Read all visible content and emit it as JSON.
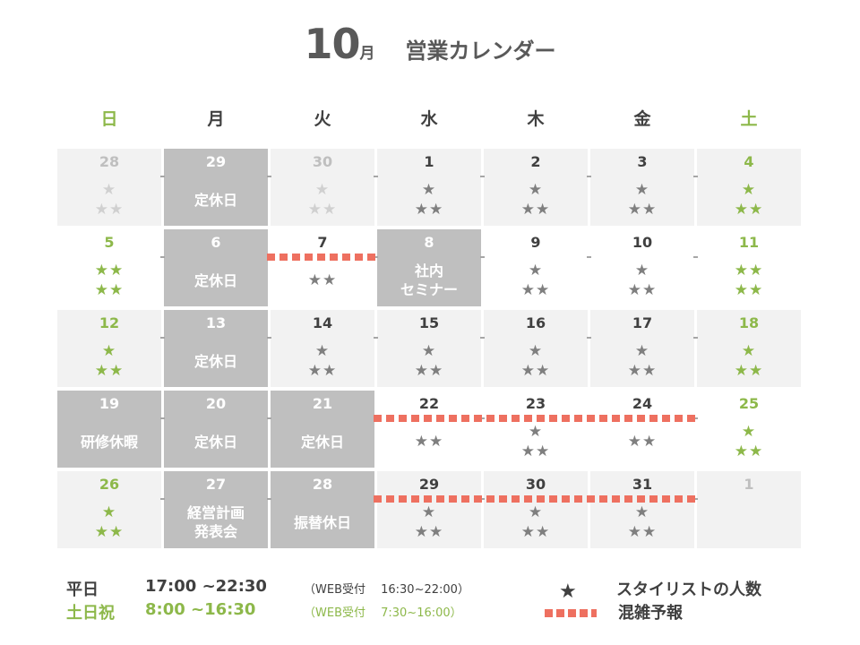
{
  "title": {
    "month": "10",
    "unit": "月",
    "text": "営業カレンダー"
  },
  "weekdays": [
    {
      "label": "日",
      "weekend": true
    },
    {
      "label": "月",
      "weekend": false
    },
    {
      "label": "火",
      "weekend": false
    },
    {
      "label": "水",
      "weekend": false
    },
    {
      "label": "木",
      "weekend": false
    },
    {
      "label": "金",
      "weekend": false
    },
    {
      "label": "土",
      "weekend": true
    }
  ],
  "weeks": [
    [
      {
        "day": "28",
        "style": "light",
        "weekend": false,
        "muted": true,
        "stars": [
          "★",
          "★★"
        ]
      },
      {
        "day": "29",
        "style": "dark",
        "note": "定休日"
      },
      {
        "day": "30",
        "style": "light",
        "weekend": false,
        "muted": true,
        "stars": [
          "★",
          "★★"
        ]
      },
      {
        "day": "1",
        "style": "light",
        "stars": [
          "★",
          "★★"
        ]
      },
      {
        "day": "2",
        "style": "light",
        "stars": [
          "★",
          "★★"
        ]
      },
      {
        "day": "3",
        "style": "light",
        "stars": [
          "★",
          "★★"
        ]
      },
      {
        "day": "4",
        "style": "light",
        "weekend": true,
        "stars": [
          "★",
          "★★"
        ]
      }
    ],
    [
      {
        "day": "5",
        "style": "white",
        "weekend": true,
        "stars": [
          "★★",
          "★★"
        ]
      },
      {
        "day": "6",
        "style": "dark",
        "note": "定休日"
      },
      {
        "day": "7",
        "style": "white",
        "stars": [
          "★★"
        ]
      },
      {
        "day": "8",
        "style": "dark",
        "note": "社内\nセミナー"
      },
      {
        "day": "9",
        "style": "white",
        "stars": [
          "★",
          "★★"
        ]
      },
      {
        "day": "10",
        "style": "white",
        "stars": [
          "★",
          "★★"
        ]
      },
      {
        "day": "11",
        "style": "white",
        "weekend": true,
        "stars": [
          "★★",
          "★★"
        ]
      }
    ],
    [
      {
        "day": "12",
        "style": "light",
        "weekend": true,
        "stars": [
          "★",
          "★★"
        ]
      },
      {
        "day": "13",
        "style": "dark",
        "note": "定休日"
      },
      {
        "day": "14",
        "style": "light",
        "stars": [
          "★",
          "★★"
        ]
      },
      {
        "day": "15",
        "style": "light",
        "stars": [
          "★",
          "★★"
        ]
      },
      {
        "day": "16",
        "style": "light",
        "stars": [
          "★",
          "★★"
        ]
      },
      {
        "day": "17",
        "style": "light",
        "stars": [
          "★",
          "★★"
        ]
      },
      {
        "day": "18",
        "style": "light",
        "weekend": true,
        "stars": [
          "★",
          "★★"
        ]
      }
    ],
    [
      {
        "day": "19",
        "style": "dark",
        "note": "研修休暇"
      },
      {
        "day": "20",
        "style": "dark",
        "note": "定休日"
      },
      {
        "day": "21",
        "style": "dark",
        "note": "定休日"
      },
      {
        "day": "22",
        "style": "white",
        "stars": [
          "★★"
        ]
      },
      {
        "day": "23",
        "style": "white",
        "stars": [
          "★",
          "★★"
        ]
      },
      {
        "day": "24",
        "style": "white",
        "stars": [
          "★★"
        ]
      },
      {
        "day": "25",
        "style": "white",
        "weekend": true,
        "stars": [
          "★",
          "★★"
        ]
      }
    ],
    [
      {
        "day": "26",
        "style": "light",
        "weekend": true,
        "stars": [
          "★",
          "★★"
        ]
      },
      {
        "day": "27",
        "style": "dark",
        "note": "経営計画\n発表会"
      },
      {
        "day": "28",
        "style": "dark",
        "note": "振替休日"
      },
      {
        "day": "29",
        "style": "light",
        "stars": [
          "★",
          "★★"
        ]
      },
      {
        "day": "30",
        "style": "light",
        "stars": [
          "★",
          "★★"
        ]
      },
      {
        "day": "31",
        "style": "light",
        "stars": [
          "★",
          "★★"
        ]
      },
      {
        "day": "1",
        "style": "light",
        "muted": true,
        "stars": []
      }
    ]
  ],
  "crowd_marks": [
    {
      "week": 1,
      "from_col": 2,
      "to_col": 2
    },
    {
      "week": 3,
      "from_col": 3,
      "to_col": 5
    },
    {
      "week": 4,
      "from_col": 3,
      "to_col": 5
    }
  ],
  "hours": {
    "weekday": {
      "label": "平日",
      "time": "17:00 ~22:30",
      "web": "（WEB受付　  16:30~22:00）"
    },
    "weekend": {
      "label": "土日祝",
      "time": "8:00 ~16:30",
      "web": "（WEB受付　  7:30~16:00）"
    }
  },
  "legend": {
    "star_symbol": "★",
    "star_text": "スタイリストの人数",
    "crowd_text": "混雑予報"
  },
  "colors": {
    "accent_green": "#8db84a",
    "crowd_red": "#ee7060",
    "closed_gray": "#bfbfbf",
    "cell_gray": "#f2f2f2"
  }
}
